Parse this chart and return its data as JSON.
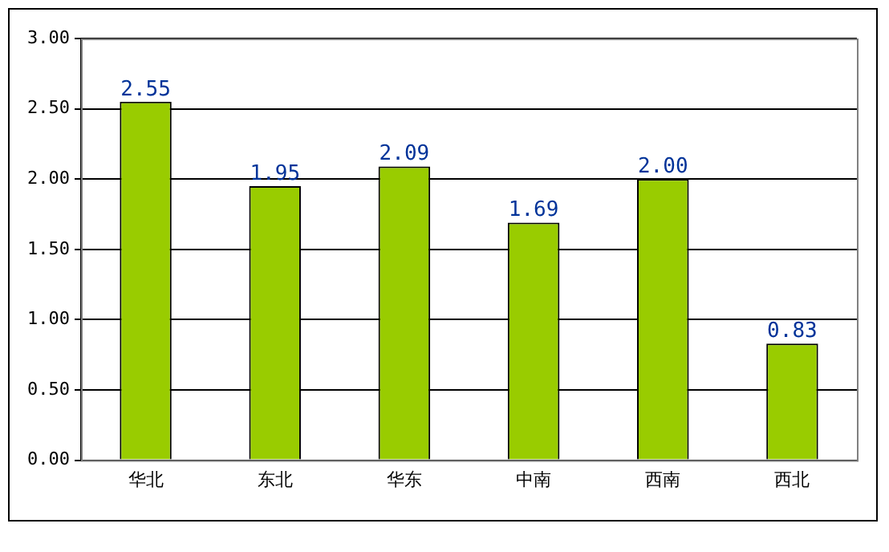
{
  "chart_data": {
    "type": "bar",
    "categories": [
      "华北",
      "东北",
      "华东",
      "中南",
      "西南",
      "西北"
    ],
    "values": [
      2.55,
      1.95,
      2.09,
      1.69,
      2.0,
      0.83
    ],
    "color": "#99cc00",
    "ylim": [
      0,
      3
    ],
    "yticks": [
      {
        "value": 0,
        "label": "0.00"
      },
      {
        "value": 0.5,
        "label": "0.50"
      },
      {
        "value": 1,
        "label": "1.00"
      },
      {
        "value": 1.5,
        "label": "1.50"
      },
      {
        "value": 2,
        "label": "2.00"
      },
      {
        "value": 2.5,
        "label": "2.50"
      },
      {
        "value": 3,
        "label": "3.00"
      }
    ],
    "grid": "y",
    "data_labels": true,
    "value_labels": [
      "2.55",
      "1.95",
      "2.09",
      "1.69",
      "2.00",
      "0.83"
    ]
  }
}
